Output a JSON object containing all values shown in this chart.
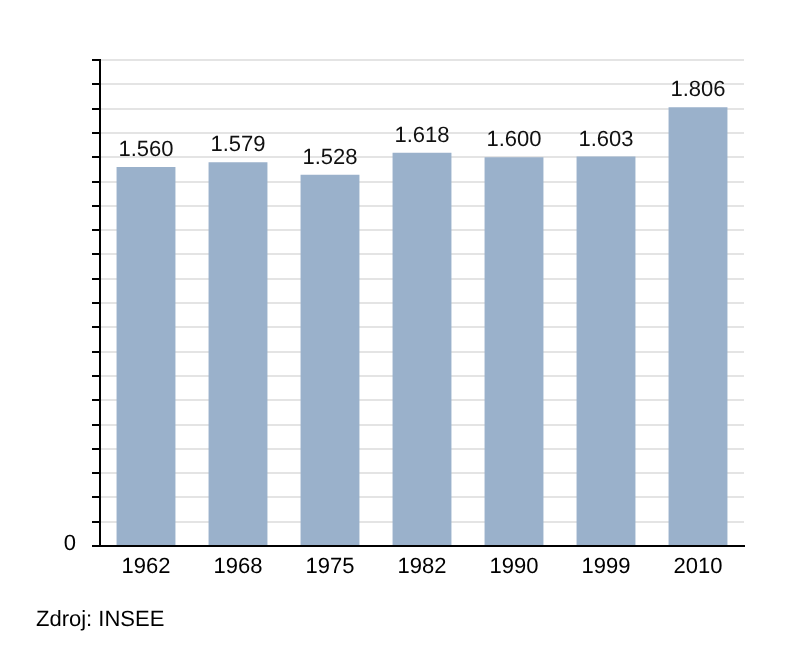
{
  "chart_data": {
    "type": "bar",
    "categories": [
      "1962",
      "1968",
      "1975",
      "1982",
      "1990",
      "1999",
      "2010"
    ],
    "values": [
      1560,
      1579,
      1528,
      1618,
      1600,
      1603,
      1806
    ],
    "value_labels": [
      "1.560",
      "1.579",
      "1.528",
      "1.618",
      "1.600",
      "1.603",
      "1.806"
    ],
    "color": "#9ab1cb",
    "ylim": [
      0,
      2000
    ],
    "yticks": [
      {
        "value": 0,
        "label": null
      },
      {
        "value": 100,
        "label": null
      },
      {
        "value": 200,
        "label": null
      },
      {
        "value": 300,
        "label": null
      },
      {
        "value": 400,
        "label": null
      },
      {
        "value": 500,
        "label": null
      },
      {
        "value": 600,
        "label": null
      },
      {
        "value": 700,
        "label": null
      },
      {
        "value": 800,
        "label": null
      },
      {
        "value": 900,
        "label": null
      },
      {
        "value": 1000,
        "label": null
      },
      {
        "value": 1100,
        "label": null
      },
      {
        "value": 1200,
        "label": null
      },
      {
        "value": 1300,
        "label": null
      },
      {
        "value": 1400,
        "label": null
      },
      {
        "value": 1500,
        "label": null
      },
      {
        "value": 1600,
        "label": null
      },
      {
        "value": 1700,
        "label": null
      },
      {
        "value": 1800,
        "label": null
      },
      {
        "value": 1900,
        "label": null
      },
      {
        "value": 2000,
        "label": null
      }
    ],
    "grid": "y",
    "annotations": [
      "0",
      "Zdroj: INSEE"
    ]
  }
}
